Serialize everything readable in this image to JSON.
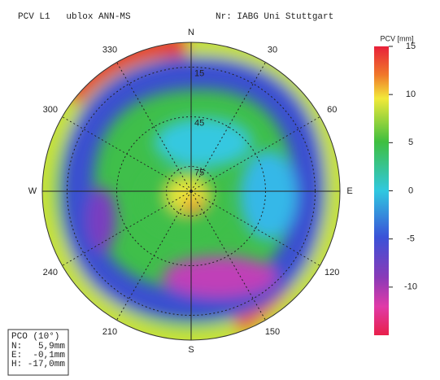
{
  "header": {
    "left": "PCV L1   ublox ANN-MS",
    "right": "Nr: IABG Uni Stuttgart"
  },
  "chart_data": {
    "type": "polar_heatmap",
    "directions": [
      "N",
      "E",
      "S",
      "W"
    ],
    "azimuth_labels": [
      30,
      60,
      120,
      150,
      210,
      240,
      300,
      330
    ],
    "elevation_labels": [
      15,
      45,
      75
    ],
    "colorbar": {
      "label": "PCV [mm]",
      "clim": [
        -15,
        15
      ],
      "ticks": [
        15,
        10,
        5,
        0,
        -5,
        -10
      ]
    }
  },
  "pco": {
    "title": "PCO (10°)",
    "rows": [
      [
        "N:",
        "5,9mm"
      ],
      [
        "E:",
        "-0,1mm"
      ],
      [
        "H:",
        "-17,0mm"
      ]
    ]
  }
}
